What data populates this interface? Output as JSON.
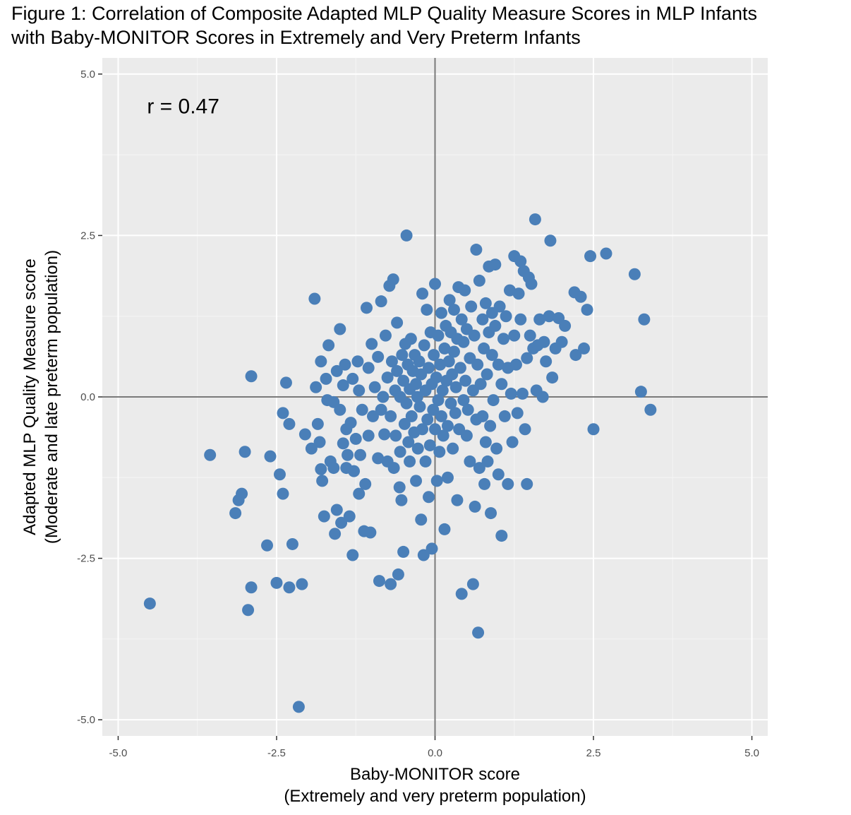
{
  "figure": {
    "title_line1": "Figure 1: Correlation of Composite Adapted MLP Quality Measure Scores in MLP Infants",
    "title_line2": "with Baby-MONITOR Scores in Extremely and Very Preterm Infants"
  },
  "chart_data": {
    "type": "scatter",
    "xlabel_line1": "Baby-MONITOR score",
    "xlabel_line2": "(Extremely and very preterm population)",
    "ylabel_line1": "Adapted MLP Quality Measure score",
    "ylabel_line2": "(Moderate and late preterm population)",
    "xlim": [
      -5.25,
      5.25
    ],
    "ylim": [
      -5.25,
      5.25
    ],
    "x_ticks": [
      -5.0,
      -2.5,
      0.0,
      2.5,
      5.0
    ],
    "x_tick_labels": [
      "-5.0",
      "-2.5",
      "0.0",
      "2.5",
      "5.0"
    ],
    "y_ticks": [
      -5.0,
      -2.5,
      0.0,
      2.5,
      5.0
    ],
    "y_tick_labels": [
      "-5.0",
      "-2.5",
      "0.0",
      "2.5",
      "5.0"
    ],
    "reference_lines": {
      "x": 0,
      "y": 0
    },
    "grid": true,
    "annotation": {
      "text": "r = 0.47",
      "x": -4.5,
      "y": 4.5
    },
    "point_color": "#4a7fb8",
    "panel_background": "#ebebeb",
    "points": [
      [
        -4.5,
        -3.2
      ],
      [
        -3.55,
        -0.9
      ],
      [
        -3.15,
        -1.8
      ],
      [
        -3.1,
        -1.6
      ],
      [
        -3.05,
        -1.5
      ],
      [
        -3.0,
        -0.85
      ],
      [
        -2.95,
        -3.3
      ],
      [
        -2.9,
        0.32
      ],
      [
        -2.9,
        -2.95
      ],
      [
        -2.65,
        -2.3
      ],
      [
        -2.6,
        -0.92
      ],
      [
        -2.5,
        -2.88
      ],
      [
        -2.45,
        -1.2
      ],
      [
        -2.4,
        -1.5
      ],
      [
        -2.4,
        -0.25
      ],
      [
        -2.35,
        0.22
      ],
      [
        -2.3,
        -0.42
      ],
      [
        -2.3,
        -2.95
      ],
      [
        -2.25,
        -2.28
      ],
      [
        -2.15,
        -4.8
      ],
      [
        -2.1,
        -2.9
      ],
      [
        -2.05,
        -0.58
      ],
      [
        -1.95,
        -0.8
      ],
      [
        -1.9,
        1.52
      ],
      [
        -1.88,
        0.15
      ],
      [
        -1.85,
        -0.42
      ],
      [
        -1.82,
        -0.7
      ],
      [
        -1.8,
        0.55
      ],
      [
        -1.8,
        -1.12
      ],
      [
        -1.78,
        -1.3
      ],
      [
        -1.75,
        -1.85
      ],
      [
        -1.72,
        0.28
      ],
      [
        -1.7,
        -0.05
      ],
      [
        -1.68,
        0.8
      ],
      [
        -1.65,
        -1.0
      ],
      [
        -1.6,
        -0.08
      ],
      [
        -1.6,
        -1.1
      ],
      [
        -1.58,
        -2.12
      ],
      [
        -1.55,
        -1.75
      ],
      [
        -1.55,
        0.4
      ],
      [
        -1.5,
        1.05
      ],
      [
        -1.5,
        -0.2
      ],
      [
        -1.48,
        -1.95
      ],
      [
        -1.45,
        -0.72
      ],
      [
        -1.45,
        0.18
      ],
      [
        -1.42,
        0.5
      ],
      [
        -1.4,
        -0.5
      ],
      [
        -1.4,
        -1.1
      ],
      [
        -1.38,
        -0.9
      ],
      [
        -1.35,
        -1.85
      ],
      [
        -1.33,
        -0.4
      ],
      [
        -1.3,
        -2.45
      ],
      [
        -1.3,
        0.28
      ],
      [
        -1.28,
        -1.15
      ],
      [
        -1.25,
        -0.65
      ],
      [
        -1.22,
        0.55
      ],
      [
        -1.2,
        -1.5
      ],
      [
        -1.2,
        0.1
      ],
      [
        -1.18,
        -0.9
      ],
      [
        -1.15,
        -0.2
      ],
      [
        -1.12,
        -2.08
      ],
      [
        -1.1,
        -1.35
      ],
      [
        -1.08,
        1.38
      ],
      [
        -1.05,
        0.45
      ],
      [
        -1.05,
        -0.6
      ],
      [
        -1.02,
        -2.1
      ],
      [
        -1.0,
        0.82
      ],
      [
        -0.98,
        -0.3
      ],
      [
        -0.95,
        0.15
      ],
      [
        -0.9,
        0.62
      ],
      [
        -0.9,
        -0.95
      ],
      [
        -0.88,
        -2.85
      ],
      [
        -0.85,
        1.48
      ],
      [
        -0.85,
        -0.2
      ],
      [
        -0.82,
        0.0
      ],
      [
        -0.8,
        -0.58
      ],
      [
        -0.78,
        0.95
      ],
      [
        -0.75,
        -1.0
      ],
      [
        -0.75,
        0.3
      ],
      [
        -0.72,
        1.72
      ],
      [
        -0.7,
        -0.3
      ],
      [
        -0.7,
        -2.9
      ],
      [
        -0.68,
        0.55
      ],
      [
        -0.66,
        1.82
      ],
      [
        -0.65,
        -1.1
      ],
      [
        -0.63,
        0.1
      ],
      [
        -0.62,
        -0.6
      ],
      [
        -0.6,
        1.15
      ],
      [
        -0.6,
        0.4
      ],
      [
        -0.58,
        -2.75
      ],
      [
        -0.56,
        -1.4
      ],
      [
        -0.55,
        -0.85
      ],
      [
        -0.55,
        0.0
      ],
      [
        -0.53,
        -1.6
      ],
      [
        -0.52,
        0.65
      ],
      [
        -0.5,
        -2.4
      ],
      [
        -0.5,
        0.25
      ],
      [
        -0.48,
        -0.42
      ],
      [
        -0.47,
        0.82
      ],
      [
        -0.45,
        -0.1
      ],
      [
        -0.45,
        2.5
      ],
      [
        -0.43,
        0.5
      ],
      [
        -0.42,
        -0.7
      ],
      [
        -0.4,
        0.12
      ],
      [
        -0.4,
        -1.0
      ],
      [
        -0.38,
        0.9
      ],
      [
        -0.37,
        -0.3
      ],
      [
        -0.35,
        0.4
      ],
      [
        -0.33,
        -0.55
      ],
      [
        -0.32,
        0.65
      ],
      [
        -0.3,
        -1.3
      ],
      [
        -0.3,
        0.2
      ],
      [
        -0.28,
        0.0
      ],
      [
        -0.27,
        -0.8
      ],
      [
        -0.25,
        0.55
      ],
      [
        -0.24,
        -0.15
      ],
      [
        -0.22,
        0.35
      ],
      [
        -0.22,
        -1.9
      ],
      [
        -0.2,
        -0.5
      ],
      [
        -0.2,
        1.6
      ],
      [
        -0.18,
        -2.45
      ],
      [
        -0.17,
        0.8
      ],
      [
        -0.15,
        0.1
      ],
      [
        -0.15,
        -1.0
      ],
      [
        -0.13,
        1.35
      ],
      [
        -0.12,
        -0.35
      ],
      [
        -0.1,
        0.45
      ],
      [
        -0.1,
        -1.55
      ],
      [
        -0.08,
        -0.75
      ],
      [
        -0.07,
        1.0
      ],
      [
        -0.05,
        0.2
      ],
      [
        -0.05,
        -2.35
      ],
      [
        -0.03,
        -0.2
      ],
      [
        -0.02,
        0.65
      ],
      [
        0.0,
        -0.5
      ],
      [
        0.0,
        1.75
      ],
      [
        0.02,
        0.3
      ],
      [
        0.03,
        -1.3
      ],
      [
        0.05,
        0.95
      ],
      [
        0.05,
        -0.05
      ],
      [
        0.07,
        -0.85
      ],
      [
        0.08,
        0.5
      ],
      [
        0.1,
        1.3
      ],
      [
        0.1,
        -0.3
      ],
      [
        0.12,
        0.1
      ],
      [
        0.13,
        -0.6
      ],
      [
        0.15,
        0.75
      ],
      [
        0.15,
        -2.05
      ],
      [
        0.17,
        1.1
      ],
      [
        0.18,
        0.25
      ],
      [
        0.2,
        -0.45
      ],
      [
        0.2,
        -1.25
      ],
      [
        0.22,
        0.55
      ],
      [
        0.23,
        1.5
      ],
      [
        0.25,
        -0.1
      ],
      [
        0.25,
        1.0
      ],
      [
        0.27,
        0.35
      ],
      [
        0.28,
        -0.8
      ],
      [
        0.3,
        0.7
      ],
      [
        0.3,
        1.35
      ],
      [
        0.32,
        -0.25
      ],
      [
        0.33,
        0.15
      ],
      [
        0.35,
        -1.6
      ],
      [
        0.35,
        0.9
      ],
      [
        0.37,
        1.7
      ],
      [
        0.38,
        -0.5
      ],
      [
        0.4,
        0.45
      ],
      [
        0.42,
        1.2
      ],
      [
        0.42,
        -3.05
      ],
      [
        0.45,
        -0.05
      ],
      [
        0.45,
        0.85
      ],
      [
        0.47,
        1.65
      ],
      [
        0.48,
        0.25
      ],
      [
        0.5,
        -0.6
      ],
      [
        0.5,
        1.05
      ],
      [
        0.52,
        -0.2
      ],
      [
        0.55,
        0.6
      ],
      [
        0.55,
        -1.0
      ],
      [
        0.57,
        1.4
      ],
      [
        0.6,
        0.1
      ],
      [
        0.6,
        -2.9
      ],
      [
        0.62,
        0.95
      ],
      [
        0.63,
        -1.7
      ],
      [
        0.65,
        2.28
      ],
      [
        0.65,
        -0.35
      ],
      [
        0.67,
        0.5
      ],
      [
        0.68,
        -3.65
      ],
      [
        0.7,
        1.8
      ],
      [
        0.7,
        -1.1
      ],
      [
        0.72,
        0.2
      ],
      [
        0.75,
        1.2
      ],
      [
        0.75,
        -0.3
      ],
      [
        0.77,
        0.75
      ],
      [
        0.78,
        -1.35
      ],
      [
        0.8,
        1.45
      ],
      [
        0.8,
        -0.7
      ],
      [
        0.82,
        0.35
      ],
      [
        0.83,
        -1.0
      ],
      [
        0.85,
        2.02
      ],
      [
        0.85,
        1.0
      ],
      [
        0.87,
        -0.45
      ],
      [
        0.88,
        -1.8
      ],
      [
        0.9,
        0.65
      ],
      [
        0.9,
        1.3
      ],
      [
        0.92,
        -0.05
      ],
      [
        0.95,
        2.05
      ],
      [
        0.95,
        1.1
      ],
      [
        0.97,
        -0.8
      ],
      [
        1.0,
        0.5
      ],
      [
        1.0,
        -1.2
      ],
      [
        1.02,
        1.4
      ],
      [
        1.05,
        -2.15
      ],
      [
        1.05,
        0.2
      ],
      [
        1.08,
        0.9
      ],
      [
        1.1,
        -0.3
      ],
      [
        1.12,
        1.25
      ],
      [
        1.15,
        0.45
      ],
      [
        1.15,
        -1.35
      ],
      [
        1.18,
        1.65
      ],
      [
        1.2,
        0.05
      ],
      [
        1.22,
        -0.7
      ],
      [
        1.25,
        2.18
      ],
      [
        1.25,
        0.95
      ],
      [
        1.28,
        0.5
      ],
      [
        1.3,
        -0.25
      ],
      [
        1.32,
        1.6
      ],
      [
        1.35,
        1.2
      ],
      [
        1.35,
        2.1
      ],
      [
        1.38,
        0.05
      ],
      [
        1.4,
        1.95
      ],
      [
        1.42,
        -0.5
      ],
      [
        1.45,
        0.6
      ],
      [
        1.45,
        -1.35
      ],
      [
        1.48,
        1.85
      ],
      [
        1.5,
        0.95
      ],
      [
        1.52,
        1.75
      ],
      [
        1.55,
        0.75
      ],
      [
        1.58,
        2.75
      ],
      [
        1.6,
        0.1
      ],
      [
        1.62,
        0.8
      ],
      [
        1.65,
        1.2
      ],
      [
        1.7,
        0.0
      ],
      [
        1.72,
        0.85
      ],
      [
        1.75,
        0.55
      ],
      [
        1.8,
        1.25
      ],
      [
        1.82,
        2.42
      ],
      [
        1.85,
        0.3
      ],
      [
        1.9,
        0.75
      ],
      [
        1.95,
        1.22
      ],
      [
        2.0,
        0.85
      ],
      [
        2.05,
        1.1
      ],
      [
        2.2,
        1.62
      ],
      [
        2.22,
        0.65
      ],
      [
        2.3,
        1.55
      ],
      [
        2.35,
        0.75
      ],
      [
        2.4,
        1.35
      ],
      [
        2.45,
        2.18
      ],
      [
        2.5,
        -0.5
      ],
      [
        2.7,
        2.22
      ],
      [
        3.15,
        1.9
      ],
      [
        3.25,
        0.08
      ],
      [
        3.3,
        1.2
      ],
      [
        3.4,
        -0.2
      ]
    ]
  }
}
